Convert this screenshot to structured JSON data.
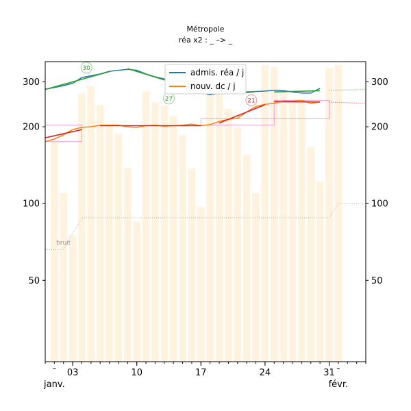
{
  "chart_data": {
    "type": "line",
    "title": "Métropole",
    "subtitle": "réa x2 : _ –> _",
    "x_ticks": [
      "03",
      "10",
      "17",
      "24",
      "31"
    ],
    "x_month_labels": [
      "janv.",
      "févr."
    ],
    "y_ticks": [
      "50",
      "100",
      "200",
      "300"
    ],
    "noise_label": "bruit",
    "colors": {
      "admis": "#1f77b4",
      "nouv": "#ff7f0e",
      "trend_green": "#2ca02c",
      "trend_red": "#d62728",
      "bars": "#fff3e0",
      "box": "#e377c2",
      "noise": "#aaaaaa"
    },
    "bars": [
      [
        0,
        175
      ],
      [
        1,
        110
      ],
      [
        2,
        75
      ],
      [
        3,
        270
      ],
      [
        4,
        288
      ],
      [
        5,
        243
      ],
      [
        6,
        203
      ],
      [
        7,
        188
      ],
      [
        8,
        138
      ],
      [
        9,
        85
      ],
      [
        10,
        275
      ],
      [
        11,
        250
      ],
      [
        12,
        242
      ],
      [
        13,
        220
      ],
      [
        14,
        186
      ],
      [
        15,
        137
      ],
      [
        16,
        97
      ],
      [
        17,
        287
      ],
      [
        18,
        274
      ],
      [
        19,
        235
      ],
      [
        20,
        200
      ],
      [
        21,
        155
      ],
      [
        22,
        110
      ],
      [
        23,
        350
      ],
      [
        24,
        343
      ],
      [
        25,
        278
      ],
      [
        26,
        250
      ],
      [
        27,
        248
      ],
      [
        28,
        166
      ],
      [
        29,
        122
      ],
      [
        30,
        339
      ],
      [
        31,
        350
      ]
    ],
    "series": [
      {
        "name": "admis. réa / j",
        "key": "admis",
        "points": [
          [
            -1,
            281
          ],
          [
            0,
            285
          ],
          [
            1,
            290
          ],
          [
            2,
            296
          ],
          [
            3,
            312
          ],
          [
            4,
            317
          ],
          [
            5,
            322
          ],
          [
            6,
            330
          ],
          [
            7,
            333
          ],
          [
            8,
            336
          ],
          [
            9,
            333
          ],
          [
            10,
            322
          ],
          [
            11,
            314
          ],
          [
            12,
            308
          ],
          [
            13,
            303
          ],
          [
            14,
            298
          ],
          [
            15,
            279
          ],
          [
            16,
            272
          ],
          [
            17,
            267
          ],
          [
            18,
            271
          ],
          [
            19,
            271
          ],
          [
            20,
            275
          ],
          [
            21,
            272
          ],
          [
            22,
            275
          ],
          [
            23,
            276
          ],
          [
            24,
            278
          ],
          [
            25,
            277
          ],
          [
            26,
            274
          ],
          [
            27,
            271
          ],
          [
            28,
            271
          ],
          [
            29,
            283
          ]
        ]
      },
      {
        "name": "nouv. dc / j",
        "key": "nouv",
        "points": [
          [
            -1,
            175
          ],
          [
            0,
            179
          ],
          [
            1,
            186
          ],
          [
            2,
            195
          ],
          [
            3,
            199
          ],
          [
            4,
            200
          ],
          [
            5,
            203
          ],
          [
            6,
            203
          ],
          [
            7,
            203
          ],
          [
            8,
            200
          ],
          [
            9,
            199
          ],
          [
            10,
            202
          ],
          [
            11,
            203
          ],
          [
            12,
            201
          ],
          [
            13,
            202
          ],
          [
            14,
            203
          ],
          [
            15,
            205
          ],
          [
            16,
            202
          ],
          [
            17,
            204
          ],
          [
            18,
            210
          ],
          [
            19,
            214
          ],
          [
            20,
            216
          ],
          [
            21,
            229
          ],
          [
            22,
            240
          ],
          [
            23,
            245
          ],
          [
            24,
            247
          ],
          [
            25,
            252
          ],
          [
            26,
            252
          ],
          [
            27,
            254
          ],
          [
            28,
            247
          ],
          [
            29,
            250
          ]
        ]
      }
    ],
    "trend_green": [
      [
        [
          -1,
          280
        ],
        [
          6,
          329
        ]
      ],
      [
        [
          8,
          338
        ],
        [
          16,
          276
        ]
      ],
      [
        [
          18,
          271
        ],
        [
          22,
          275
        ]
      ],
      [
        [
          24,
          274
        ],
        [
          29,
          277
        ]
      ]
    ],
    "trend_red": [
      [
        [
          -1,
          181
        ],
        [
          3,
          195
        ]
      ],
      [
        [
          5,
          202
        ],
        [
          16,
          202
        ]
      ],
      [
        [
          18,
          207
        ],
        [
          23,
          244
        ]
      ],
      [
        [
          24,
          251
        ],
        [
          29,
          250
        ]
      ]
    ],
    "projection_green": [
      [
        30,
        278
      ],
      [
        34,
        280
      ]
    ],
    "projection_red": [
      [
        30,
        250
      ],
      [
        34,
        247
      ]
    ],
    "boxes": [
      [
        -1,
        3,
        175,
        203
      ],
      [
        16,
        24,
        203,
        215
      ],
      [
        24,
        30,
        215,
        254
      ]
    ],
    "noise_line": [
      [
        -1,
        66
      ],
      [
        1,
        66
      ],
      [
        3,
        88
      ],
      [
        30,
        88
      ],
      [
        31,
        100
      ],
      [
        34,
        100
      ]
    ],
    "annotations": [
      {
        "x": 3.5,
        "y": 341,
        "text": "30",
        "color": "#2ca02c"
      },
      {
        "x": 12.5,
        "y": 258,
        "text": "27",
        "color": "#2ca02c"
      },
      {
        "x": 21.5,
        "y": 254,
        "text": "21",
        "color": "#d62728"
      }
    ],
    "xlim": [
      -1,
      34
    ],
    "ylim": [
      24,
      360
    ]
  }
}
